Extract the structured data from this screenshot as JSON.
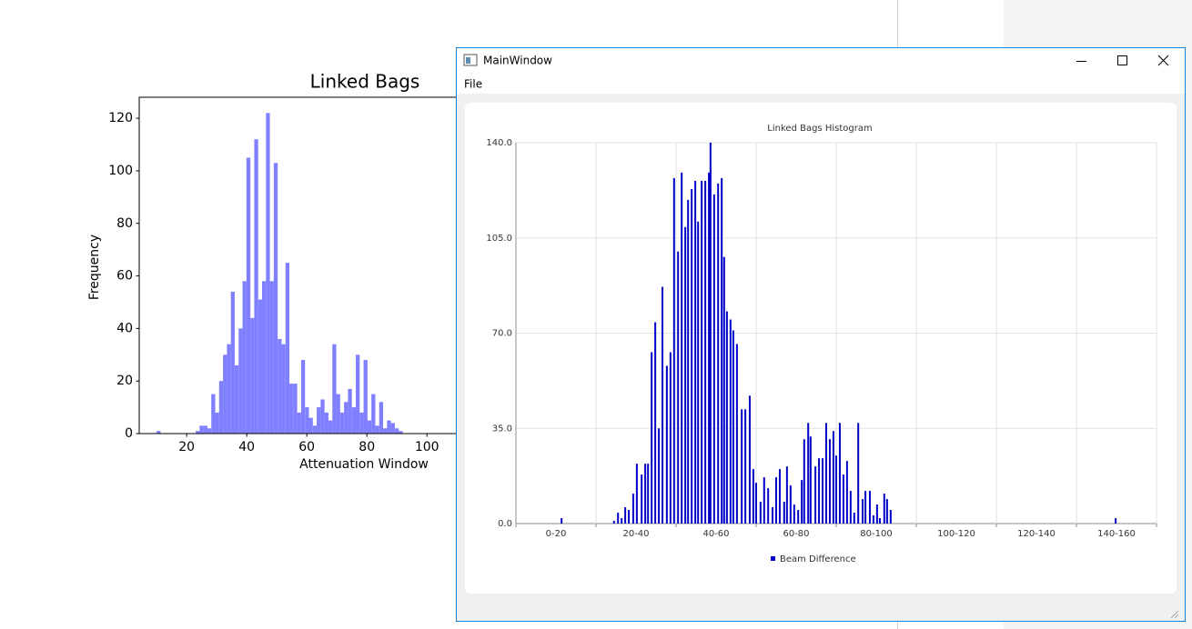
{
  "window": {
    "title": "MainWindow",
    "menu": [
      "File"
    ]
  },
  "chart_data": [
    {
      "type": "histogram",
      "title": "Linked Bags",
      "xlabel": "Attenuation Window",
      "ylabel": "Frequency",
      "bins": [
        10,
        11.3,
        12.6,
        13.9,
        15.2,
        16.5,
        17.8,
        19.1,
        20.4,
        21.7,
        23,
        24.3,
        25.6,
        26.9,
        28.2,
        29.5,
        30.8,
        32.1,
        33.4,
        34.7,
        36,
        37.3,
        38.6,
        39.9,
        41.2,
        42.5,
        43.8,
        45.1,
        46.4,
        47.7,
        49,
        50.3,
        51.6,
        52.9,
        54.2,
        55.5,
        56.8,
        58.1,
        59.4,
        60.7,
        62,
        63.3,
        64.6,
        65.9,
        67.2,
        68.5,
        69.8,
        71.1,
        72.4,
        73.7,
        75,
        76.3,
        77.6,
        78.9,
        80.2,
        81.5,
        82.8,
        84.1,
        85.4,
        86.7,
        88,
        89.3,
        90.6,
        91.9
      ],
      "values": [
        1,
        0,
        0,
        0,
        0,
        0,
        0,
        0,
        0,
        0,
        1,
        3,
        3,
        2,
        15,
        8,
        20,
        30,
        34,
        54,
        26,
        40,
        58,
        105,
        44,
        112,
        51,
        58,
        122,
        58,
        103,
        36,
        34,
        65,
        19,
        19,
        8,
        28,
        10,
        6,
        3,
        10,
        13,
        8,
        5,
        34,
        15,
        8,
        12,
        17,
        10,
        30,
        8,
        28,
        5,
        15,
        3,
        12,
        2,
        5,
        4,
        2,
        1
      ],
      "color": "#8080ff",
      "xlim": [
        4.2,
        127.5
      ],
      "xticks": [
        20,
        40,
        60,
        80,
        100
      ],
      "ylim": [
        0,
        128
      ],
      "yticks": [
        0,
        20,
        40,
        60,
        80,
        100,
        120
      ]
    },
    {
      "type": "bar",
      "title": "Linked Bags Histogram",
      "categories": [
        "0-20",
        "20-40",
        "40-60",
        "60-80",
        "80-100",
        "100-120",
        "120-140",
        "140-160"
      ],
      "x": [
        11.4,
        24.5,
        25.5,
        26.4,
        27.3,
        28.2,
        29.3,
        30.2,
        31.4,
        32.3,
        33.0,
        33.9,
        34.8,
        35.7,
        36.6,
        37.7,
        38.6,
        39.5,
        40.5,
        41.4,
        42.3,
        43.0,
        43.9,
        44.8,
        45.5,
        46.4,
        47.3,
        48.2,
        48.6,
        49.5,
        50.5,
        51.4,
        52.0,
        52.7,
        53.6,
        54.3,
        55.2,
        56.4,
        57.3,
        58.4,
        59.3,
        60.0,
        61.1,
        62.0,
        63.0,
        64.1,
        65.0,
        65.9,
        67.0,
        67.7,
        68.6,
        69.5,
        70.5,
        71.4,
        72.0,
        73.0,
        73.6,
        74.8,
        75.7,
        76.6,
        77.5,
        78.4,
        79.3,
        80.0,
        80.9,
        81.8,
        82.7,
        83.6,
        84.5,
        85.5,
        86.6,
        87.3,
        88.4,
        89.3,
        90.2,
        90.9,
        92.0,
        92.7,
        93.6,
        149.8
      ],
      "series": [
        {
          "name": "Beam Difference",
          "color": "#0000c8",
          "values": [
            2,
            1,
            4,
            2,
            6,
            5,
            11,
            22,
            18,
            22,
            22,
            63,
            74,
            35,
            87,
            58,
            63,
            127,
            100,
            129,
            109,
            119,
            123,
            126,
            111,
            126,
            126,
            129,
            140,
            121,
            125,
            127,
            98,
            78,
            75,
            71,
            66,
            42,
            42,
            47,
            20,
            15,
            8,
            17,
            13,
            6,
            17,
            20,
            8,
            21,
            14,
            7,
            5,
            16,
            31,
            37,
            32,
            21,
            24,
            24,
            37,
            31,
            34,
            25,
            37,
            18,
            23,
            12,
            4,
            37,
            9,
            12,
            12,
            3,
            7,
            2,
            11,
            9,
            5,
            2
          ]
        }
      ],
      "xlim": [
        0,
        160
      ],
      "xticks": [
        0,
        20,
        40,
        60,
        80,
        100,
        120,
        140,
        160
      ],
      "ylim": [
        0,
        140
      ],
      "yticks": [
        {
          "value": 0,
          "label": "0.0"
        },
        {
          "value": 35,
          "label": "35.0"
        },
        {
          "value": 70,
          "label": "70.0"
        },
        {
          "value": 105,
          "label": "105.0"
        },
        {
          "value": 140,
          "label": "140.0"
        }
      ],
      "grid": true
    }
  ]
}
